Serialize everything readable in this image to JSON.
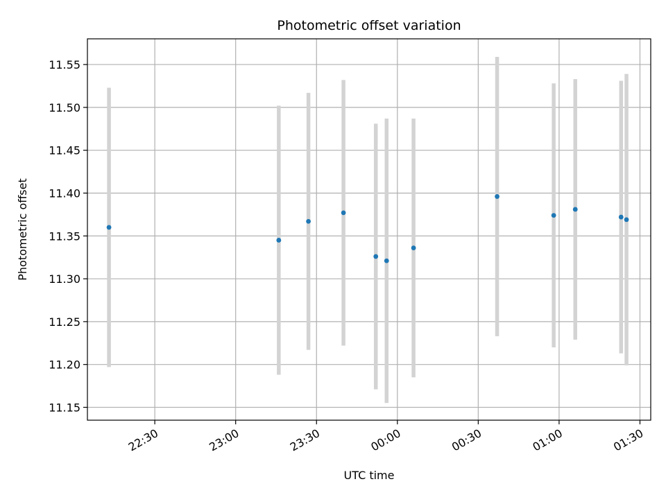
{
  "chart_data": {
    "type": "scatter",
    "title": "Photometric offset variation",
    "xlabel": "UTC time",
    "ylabel": "Photometric offset",
    "x_ticks": [
      "22:30",
      "23:00",
      "23:30",
      "00:00",
      "00:30",
      "01:00",
      "01:30"
    ],
    "y_ticks": [
      "11.15",
      "11.20",
      "11.25",
      "11.30",
      "11.35",
      "11.40",
      "11.45",
      "11.50",
      "11.55"
    ],
    "xlim": [
      "22:05",
      "01:34"
    ],
    "ylim": [
      11.135,
      11.58
    ],
    "grid": true,
    "point_color": "#1f77b4",
    "errorbar_color": "#d3d3d3",
    "points": [
      {
        "x": "22:13",
        "y": 11.36,
        "err": 0.163
      },
      {
        "x": "23:16",
        "y": 11.345,
        "err": 0.157
      },
      {
        "x": "23:27",
        "y": 11.367,
        "err": 0.15
      },
      {
        "x": "23:40",
        "y": 11.377,
        "err": 0.155
      },
      {
        "x": "23:52",
        "y": 11.326,
        "err": 0.155
      },
      {
        "x": "23:56",
        "y": 11.321,
        "err": 0.166
      },
      {
        "x": "00:06",
        "y": 11.336,
        "err": 0.151
      },
      {
        "x": "00:37",
        "y": 11.396,
        "err": 0.163
      },
      {
        "x": "00:58",
        "y": 11.374,
        "err": 0.154
      },
      {
        "x": "01:06",
        "y": 11.381,
        "err": 0.152
      },
      {
        "x": "01:23",
        "y": 11.372,
        "err": 0.159
      },
      {
        "x": "01:25",
        "y": 11.369,
        "err": 0.17
      }
    ]
  }
}
